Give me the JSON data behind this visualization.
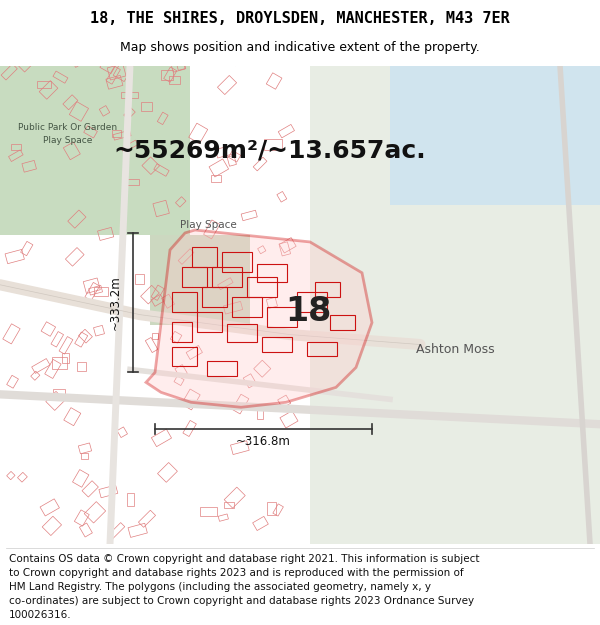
{
  "title_line1": "18, THE SHIRES, DROYLSDEN, MANCHESTER, M43 7ER",
  "title_line2": "Map shows position and indicative extent of the property.",
  "area_text": "~55269m²/~13.657ac.",
  "label_number": "18",
  "label_ashton": "Ashton Moss",
  "label_play": "Play Space",
  "label_park1": "Public Park Or Garden",
  "label_park2": "Play Space",
  "dim_vertical": "~333.2m",
  "dim_horizontal": "~316.8m",
  "footer_lines": [
    "Contains OS data © Crown copyright and database right 2021. This information is subject",
    "to Crown copyright and database rights 2023 and is reproduced with the permission of",
    "HM Land Registry. The polygons (including the associated geometry, namely x, y",
    "co-ordinates) are subject to Crown copyright and database rights 2023 Ordnance Survey",
    "100026316."
  ],
  "map_bg": "#f2ede8",
  "title_fontsize": 11,
  "subtitle_fontsize": 9,
  "area_fontsize": 18,
  "footer_fontsize": 7.5
}
